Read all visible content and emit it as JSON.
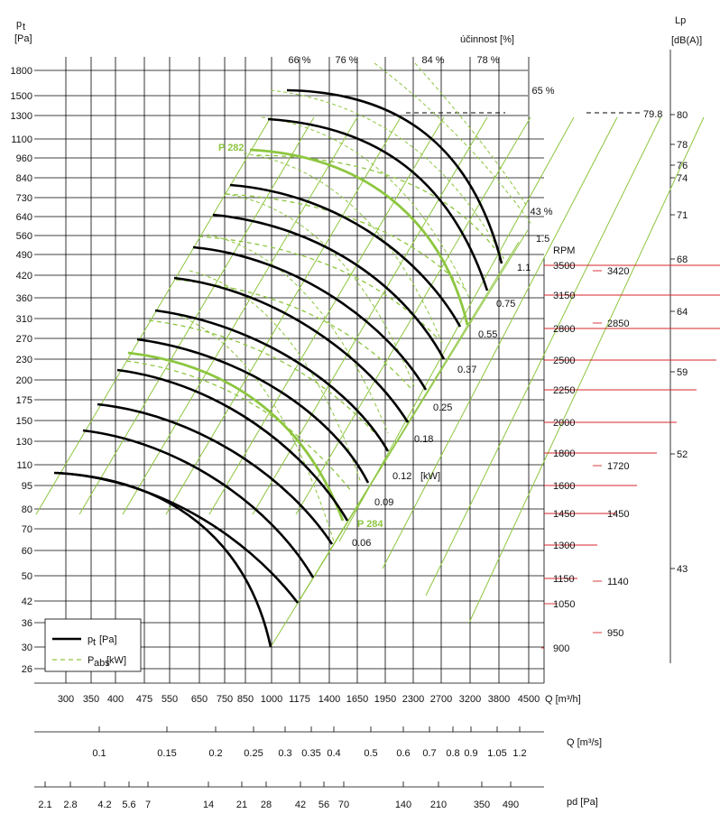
{
  "chart_data": {
    "type": "line",
    "title": "",
    "ylabel": "p",
    "ylabel_sub": "t",
    "yunit": "[Pa]",
    "xlabel": "Q [m³/h]",
    "efficiency_title": "účinnost [%]",
    "lp_label": "Lp",
    "lp_unit": "[dB(A)]",
    "rpm_label": "RPM",
    "power_unit": "[kW]",
    "y_ticks": [
      "1800",
      "1500",
      "1300",
      "1100",
      "960",
      "840",
      "730",
      "640",
      "560",
      "490",
      "420",
      "360",
      "310",
      "270",
      "230",
      "200",
      "175",
      "150",
      "130",
      "110",
      "95",
      "80",
      "70",
      "60",
      "50",
      "42",
      "36",
      "30",
      "26"
    ],
    "x_ticks": [
      "300",
      "350",
      "400",
      "475",
      "550",
      "650",
      "750",
      "850",
      "1000",
      "1175",
      "1400",
      "1650",
      "1950",
      "2300",
      "2700",
      "3200",
      "3800",
      "4500"
    ],
    "q_m3s_label": "Q  [m³/s]",
    "q_m3s_ticks": [
      "0.1",
      "0.15",
      "0.2",
      "0.25",
      "0.3",
      "0.35",
      "0.4",
      "0.5",
      "0.6",
      "0.7",
      "0.8",
      "0.9",
      "1.05",
      "1.2"
    ],
    "pd_label": "pd  [Pa]",
    "pd_ticks": [
      "2.1",
      "2.8",
      "4.2",
      "5.6",
      "7",
      "14",
      "21",
      "28",
      "42",
      "56",
      "70",
      "140",
      "210",
      "350",
      "490"
    ],
    "efficiency_labels": [
      "66 %",
      "76 %",
      "84 %",
      "78 %",
      "65 %",
      "43 %"
    ],
    "rpm_values": [
      "3500",
      "3150",
      "2800",
      "2500",
      "2250",
      "2000",
      "1800",
      "1600",
      "1450",
      "1300",
      "1150",
      "1050",
      "900"
    ],
    "rpm_alt_values": [
      "3420",
      "2850",
      "1720",
      "1450",
      "1140",
      "950"
    ],
    "power_labels": [
      "1.5",
      "1.1",
      "0.75",
      "0.55",
      "0.37",
      "0.25",
      "0.18",
      "0.12",
      "0.09",
      "0.06"
    ],
    "lp_ticks": [
      "80",
      "78",
      "76",
      "74",
      "71",
      "68",
      "64",
      "59",
      "52",
      "43"
    ],
    "lp_marker": "79.8",
    "highlighted_curves": [
      "P 282",
      "P 284"
    ],
    "legend": [
      "p",
      "P"
    ],
    "legend_subs": [
      "t",
      "abs"
    ],
    "legend_units": [
      "[Pa]",
      "[kW]"
    ]
  }
}
